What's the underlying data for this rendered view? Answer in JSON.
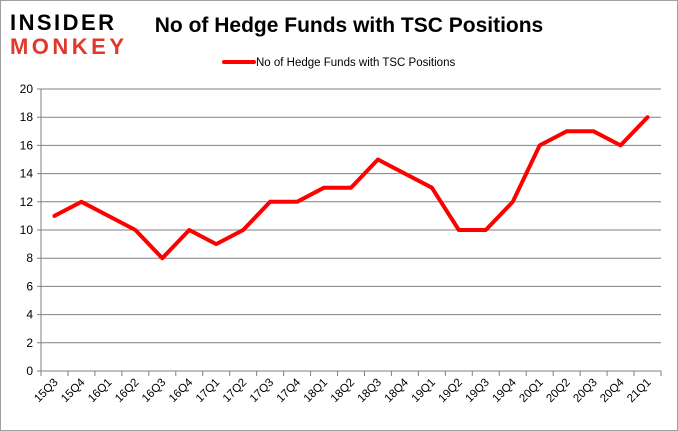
{
  "logo": {
    "line1": "INSIDER",
    "line2": "MONKEY",
    "colors": {
      "line1": "#000000",
      "line2": "#e0392b"
    }
  },
  "chart_data": {
    "type": "line",
    "title": "No of Hedge Funds with TSC Positions",
    "xlabel": "",
    "ylabel": "",
    "categories": [
      "15Q3",
      "15Q4",
      "16Q1",
      "16Q2",
      "16Q3",
      "16Q4",
      "17Q1",
      "17Q2",
      "17Q3",
      "17Q4",
      "18Q1",
      "18Q2",
      "18Q3",
      "18Q4",
      "19Q1",
      "19Q2",
      "19Q3",
      "19Q4",
      "20Q1",
      "20Q2",
      "20Q3",
      "20Q4",
      "21Q1"
    ],
    "series": [
      {
        "name": "No of Hedge Funds with TSC Positions",
        "color": "#ff0000",
        "values": [
          11,
          12,
          11,
          10,
          8,
          10,
          9,
          10,
          12,
          12,
          13,
          13,
          15,
          14,
          13,
          10,
          10,
          12,
          16,
          17,
          17,
          16,
          18
        ]
      }
    ],
    "ylim": [
      0,
      20
    ],
    "yticks": [
      0,
      2,
      4,
      6,
      8,
      10,
      12,
      14,
      16,
      18,
      20
    ],
    "grid": true,
    "legend": "top-center"
  }
}
